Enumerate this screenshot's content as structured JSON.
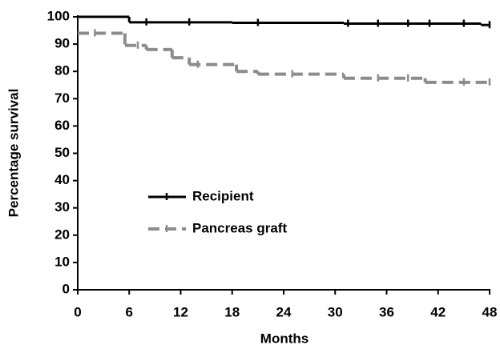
{
  "chart_data": {
    "type": "step",
    "x_label": "Months",
    "y_label": "Percentage survival",
    "xlim": [
      0,
      48
    ],
    "xticks": [
      0,
      6,
      12,
      18,
      24,
      30,
      36,
      42,
      48
    ],
    "ylim": [
      0,
      100
    ],
    "yticks": [
      0,
      10,
      20,
      30,
      40,
      50,
      60,
      70,
      80,
      90,
      100
    ],
    "legend": "lower-left",
    "series": [
      {
        "name": "Recipient",
        "color": "#000000",
        "dashed": false,
        "x": [
          0,
          6,
          18,
          31,
          47
        ],
        "values": [
          100,
          98,
          97.8,
          97.5,
          97
        ],
        "censored": [
          8,
          13,
          21,
          31.5,
          35,
          38.5,
          41,
          45,
          48
        ]
      },
      {
        "name": "Pancreas graft",
        "color": "#8c8c8c",
        "dashed": true,
        "x": [
          0,
          5.5,
          8,
          11,
          13,
          18.5,
          21,
          31,
          40.5
        ],
        "values": [
          94,
          89.5,
          88,
          85,
          82.5,
          80,
          79,
          77.5,
          76
        ],
        "censored": [
          2,
          7,
          14,
          25,
          35,
          38.5,
          45,
          48
        ]
      }
    ]
  }
}
